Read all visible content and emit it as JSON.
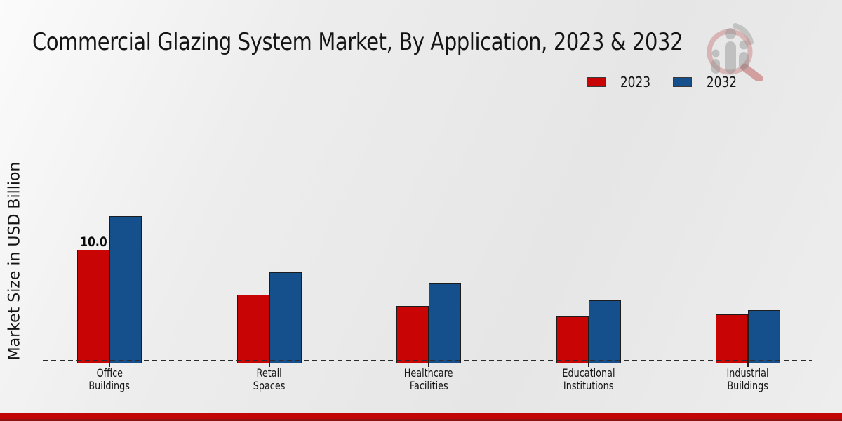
{
  "title": "Commercial Glazing System Market, By Application, 2023 & 2032",
  "y_axis": {
    "label": "Market Size in USD Billion"
  },
  "legend": {
    "items": [
      {
        "label": "2023",
        "color": "#c90404"
      },
      {
        "label": "2032",
        "color": "#15508c"
      }
    ]
  },
  "watermark": {
    "name": "market-research-magnifier-logo"
  },
  "footer": {
    "stripe_color": "#c20606",
    "edge_color": "#8e1212"
  },
  "chart_data": {
    "type": "bar",
    "title": "Commercial Glazing System Market, By Application, 2023 & 2032",
    "categories": [
      "Office Buildings",
      "Retail Spaces",
      "Healthcare Facilities",
      "Educational Institutions",
      "Industrial Buildings"
    ],
    "series": [
      {
        "name": "2023",
        "color": "#c90404",
        "values": [
          10.0,
          6.0,
          5.0,
          4.0,
          4.2
        ],
        "data_labels": [
          "10.0",
          null,
          null,
          null,
          null
        ]
      },
      {
        "name": "2032",
        "color": "#15508c",
        "values": [
          13.0,
          8.0,
          7.0,
          5.5,
          4.6
        ],
        "data_labels": [
          null,
          null,
          null,
          null,
          null
        ]
      }
    ],
    "xlabel": "",
    "ylabel": "Market Size in USD Billion",
    "ylim": [
      0,
      14
    ],
    "grid": false,
    "baseline_style": "dashed",
    "legend_position": "top-right",
    "annotations": [
      "10.0 shown above 2023 Office Buildings bar"
    ]
  }
}
